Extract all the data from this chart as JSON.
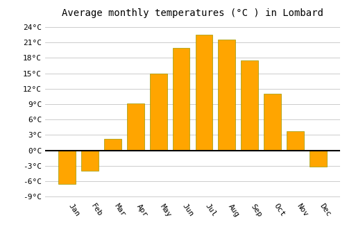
{
  "title": "Average monthly temperatures (°C ) in Lombard",
  "months": [
    "Jan",
    "Feb",
    "Mar",
    "Apr",
    "May",
    "Jun",
    "Jul",
    "Aug",
    "Sep",
    "Oct",
    "Nov",
    "Dec"
  ],
  "temperatures": [
    -6.5,
    -4.0,
    2.2,
    9.2,
    15.0,
    20.0,
    22.5,
    21.5,
    17.5,
    11.0,
    3.8,
    -3.2
  ],
  "bar_color": "#FFA500",
  "bar_edge_color": "#999900",
  "ylim": [
    -9.5,
    25
  ],
  "yticks": [
    -9,
    -6,
    -3,
    0,
    3,
    6,
    9,
    12,
    15,
    18,
    21,
    24
  ],
  "ytick_labels": [
    "-9°C",
    "-6°C",
    "-3°C",
    "0°C",
    "3°C",
    "6°C",
    "9°C",
    "12°C",
    "15°C",
    "18°C",
    "21°C",
    "24°C"
  ],
  "background_color": "#ffffff",
  "grid_color": "#cccccc",
  "zero_line_color": "#000000",
  "title_fontsize": 10,
  "tick_fontsize": 8,
  "bar_width": 0.75
}
